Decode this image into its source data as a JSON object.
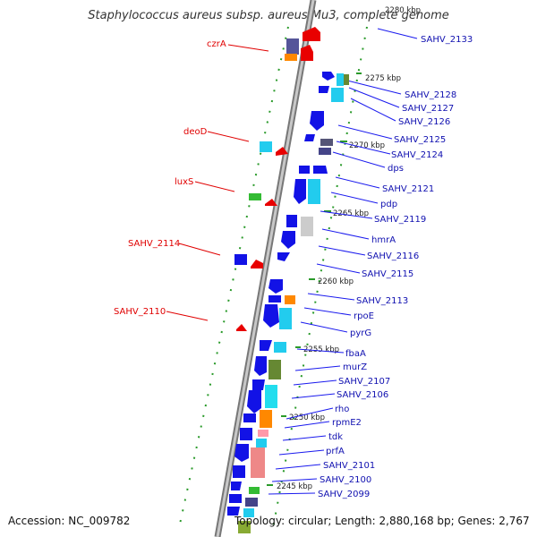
{
  "title": "Staphylococcus aureus subsp. aureus Mu3, complete genome",
  "footer": {
    "accession": "Accession: NC_009782",
    "topology": "Topology: circular; Length: 2,880,168 bp; Genes: 2,767"
  },
  "kbp_marks": [
    "2280 kbp",
    "2275 kbp",
    "2270 kbp",
    "2265 kbp",
    "2260 kbp",
    "2255 kbp",
    "2250 kbp",
    "2245 kbp"
  ],
  "left_labels": [
    "czrA",
    "deoD",
    "luxS",
    "SAHV_2114",
    "SAHV_2110"
  ],
  "right_labels": [
    "SAHV_2133",
    "SAHV_2128",
    "SAHV_2127",
    "SAHV_2126",
    "SAHV_2125",
    "SAHV_2124",
    "dps",
    "SAHV_2121",
    "pdp",
    "SAHV_2119",
    "hmrA",
    "SAHV_2116",
    "SAHV_2115",
    "SAHV_2113",
    "rpoE",
    "pyrG",
    "fbaA",
    "murZ",
    "SAHV_2107",
    "SAHV_2106",
    "rho",
    "rpmE2",
    "tdk",
    "prfA",
    "SAHV_2101",
    "SAHV_2100",
    "SAHV_2099"
  ],
  "colors": {
    "backbone": "#999999",
    "blue": "#1212e6",
    "red": "#e00000",
    "cyan": "#22ddee",
    "green": "#22aa22",
    "label_red": "#e00000",
    "label_blue": "#1010b0"
  }
}
